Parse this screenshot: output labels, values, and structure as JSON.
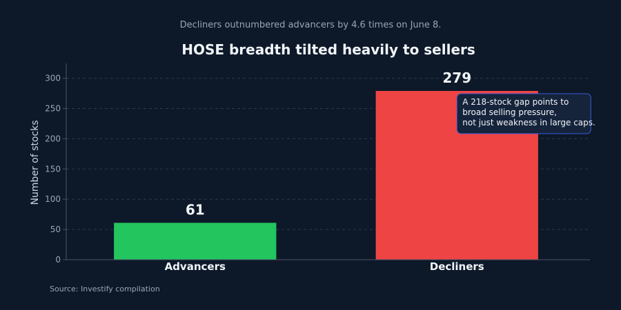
{
  "chart_data": {
    "type": "bar",
    "title": "HOSE breadth tilted heavily to sellers",
    "subtitle": "Decliners outnumbered advancers by 4.6 times on June 8.",
    "xlabel": "",
    "ylabel": "Number of stocks",
    "categories": [
      "Advancers",
      "Decliners"
    ],
    "values": [
      61,
      279
    ],
    "value_labels": [
      "61",
      "279"
    ],
    "bar_colors": [
      "#22c55e",
      "#ef4444"
    ],
    "ylim": [
      0,
      320
    ],
    "yticks": [
      0,
      50,
      100,
      150,
      200,
      250,
      300
    ],
    "ytick_labels": [
      "0",
      "50",
      "100",
      "150",
      "200",
      "250",
      "300"
    ],
    "grid": true,
    "annotation": {
      "category": "Decliners",
      "lines": [
        "A 218-stock gap points to",
        "broad selling pressure,",
        "not just weakness in large caps."
      ]
    },
    "source": "Source: Investify compilation"
  },
  "colors": {
    "background": "#0d1829",
    "axis": "#4a5568",
    "grid": "#2a3a52",
    "text_muted": "#9aa5b5",
    "text_main": "#f1f5f9",
    "annotation_bg": "#15233b",
    "annotation_border": "#3b5bdb"
  }
}
